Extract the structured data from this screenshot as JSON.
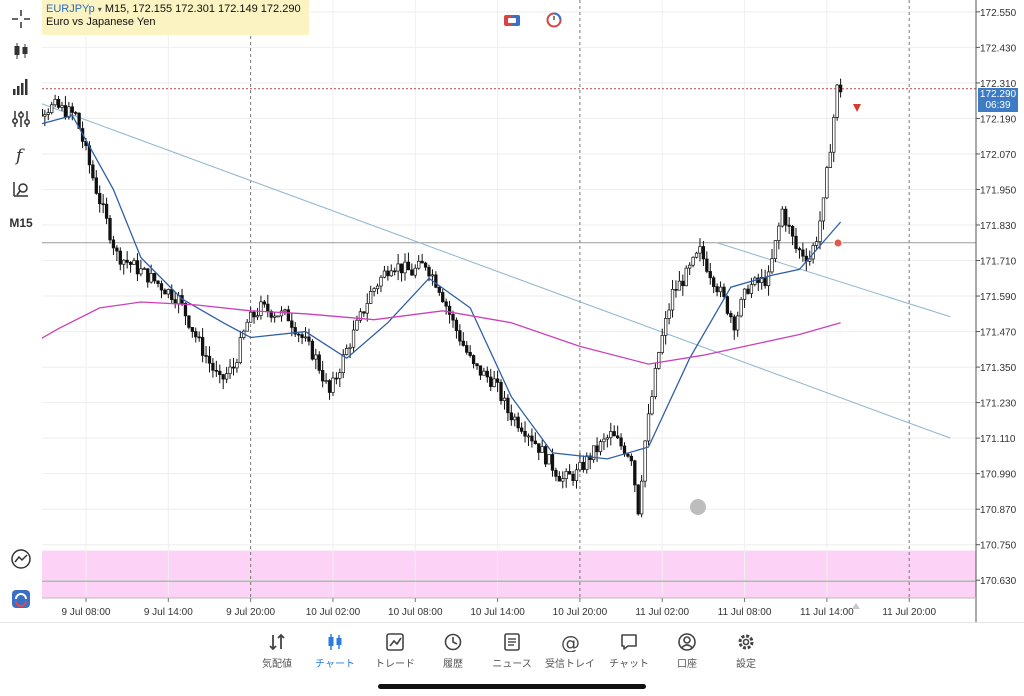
{
  "header": {
    "symbol": "EURJPYp",
    "timeframe_line": "M15, 172.155 172.301 172.149 172.290",
    "description": "Euro vs Japanese Yen"
  },
  "sidebar": {
    "timeframe": "M15",
    "items": [
      {
        "name": "crosshair-icon"
      },
      {
        "name": "candles-icon"
      },
      {
        "name": "volume-icon"
      },
      {
        "name": "indicators-icon"
      },
      {
        "name": "function-icon"
      },
      {
        "name": "objects-icon"
      }
    ],
    "bottom": [
      {
        "name": "trend-icon"
      },
      {
        "name": "app-logo-icon"
      }
    ]
  },
  "price_tag": {
    "price": "172.290",
    "countdown": "06:39"
  },
  "price_axis": {
    "labels": [
      "172.550",
      "172.430",
      "172.310",
      "172.190",
      "172.070",
      "171.950",
      "171.830",
      "171.710",
      "171.590",
      "171.470",
      "171.350",
      "171.230",
      "171.110",
      "170.990",
      "170.870",
      "170.750",
      "170.630"
    ]
  },
  "time_axis": {
    "labels": [
      "9 Jul 08:00",
      "9 Jul 14:00",
      "9 Jul 20:00",
      "10 Jul 02:00",
      "10 Jul 08:00",
      "10 Jul 14:00",
      "10 Jul 20:00",
      "11 Jul 02:00",
      "11 Jul 08:00",
      "11 Jul 14:00",
      "11 Jul 20:00"
    ]
  },
  "chart_data": {
    "type": "candlestick",
    "symbol": "EURJPYp",
    "timeframe": "M15",
    "ylim": [
      170.57,
      172.59
    ],
    "last_price": 172.29,
    "horizontal_lines": [
      171.77,
      170.627
    ],
    "pink_zone": [
      170.57,
      170.73
    ],
    "trendlines": [
      {
        "points": [
          [
            "9 Jul 03:00",
            172.27
          ],
          [
            "11 Jul 23:00",
            171.11
          ]
        ]
      },
      {
        "points": [
          [
            "11 Jul 06:00",
            171.77
          ],
          [
            "11 Jul 23:00",
            171.52
          ]
        ]
      }
    ],
    "key_path": [
      [
        "9 Jul 03:00",
        172.2
      ],
      [
        "9 Jul 06:00",
        172.23
      ],
      [
        "9 Jul 07:30",
        172.2
      ],
      [
        "9 Jul 09:00",
        171.95
      ],
      [
        "9 Jul 10:30",
        171.73
      ],
      [
        "9 Jul 13:00",
        171.65
      ],
      [
        "9 Jul 15:00",
        171.58
      ],
      [
        "9 Jul 16:30",
        171.43
      ],
      [
        "9 Jul 18:00",
        171.3
      ],
      [
        "9 Jul 19:00",
        171.35
      ],
      [
        "9 Jul 20:00",
        171.5
      ],
      [
        "9 Jul 21:00",
        171.55
      ],
      [
        "9 Jul 23:00",
        171.52
      ],
      [
        "10 Jul 00:00",
        171.45
      ],
      [
        "10 Jul 01:00",
        171.38
      ],
      [
        "10 Jul 02:00",
        171.26
      ],
      [
        "10 Jul 03:00",
        171.38
      ],
      [
        "10 Jul 05:00",
        171.6
      ],
      [
        "10 Jul 06:30",
        171.7
      ],
      [
        "10 Jul 08:00",
        171.67
      ],
      [
        "10 Jul 09:00",
        171.7
      ],
      [
        "10 Jul 10:00",
        171.62
      ],
      [
        "10 Jul 11:00",
        171.5
      ],
      [
        "10 Jul 12:30",
        171.35
      ],
      [
        "10 Jul 14:00",
        171.3
      ],
      [
        "10 Jul 15:00",
        171.2
      ],
      [
        "10 Jul 16:30",
        171.13
      ],
      [
        "10 Jul 18:00",
        171.03
      ],
      [
        "10 Jul 19:00",
        170.97
      ],
      [
        "10 Jul 20:00",
        170.99
      ],
      [
        "10 Jul 21:00",
        171.05
      ],
      [
        "10 Jul 22:30",
        171.12
      ],
      [
        "11 Jul 00:00",
        171.05
      ],
      [
        "11 Jul 00:30",
        170.87
      ],
      [
        "11 Jul 01:00",
        171.1
      ],
      [
        "11 Jul 02:00",
        171.4
      ],
      [
        "11 Jul 03:00",
        171.6
      ],
      [
        "11 Jul 04:00",
        171.66
      ],
      [
        "11 Jul 05:00",
        171.74
      ],
      [
        "11 Jul 06:30",
        171.6
      ],
      [
        "11 Jul 07:30",
        171.5
      ],
      [
        "11 Jul 08:30",
        171.62
      ],
      [
        "11 Jul 10:00",
        171.65
      ],
      [
        "11 Jul 11:00",
        171.88
      ],
      [
        "11 Jul 12:00",
        171.75
      ],
      [
        "11 Jul 13:00",
        171.72
      ],
      [
        "11 Jul 13:30",
        171.79
      ],
      [
        "11 Jul 14:00",
        171.9
      ],
      [
        "11 Jul 14:30",
        172.1
      ],
      [
        "11 Jul 15:00",
        172.29
      ]
    ],
    "moving_averages": [
      {
        "color": "#2f5fa8",
        "points": [
          [
            "9 Jul 03:00",
            172.15
          ],
          [
            "9 Jul 07:00",
            172.2
          ],
          [
            "9 Jul 10:00",
            171.95
          ],
          [
            "9 Jul 12:00",
            171.72
          ],
          [
            "9 Jul 15:00",
            171.58
          ],
          [
            "9 Jul 18:00",
            171.5
          ],
          [
            "9 Jul 20:00",
            171.45
          ],
          [
            "10 Jul 00:00",
            171.47
          ],
          [
            "10 Jul 03:00",
            171.38
          ],
          [
            "10 Jul 06:00",
            171.5
          ],
          [
            "10 Jul 09:00",
            171.65
          ],
          [
            "10 Jul 12:00",
            171.55
          ],
          [
            "10 Jul 15:00",
            171.25
          ],
          [
            "10 Jul 18:00",
            171.06
          ],
          [
            "10 Jul 22:00",
            171.04
          ],
          [
            "11 Jul 01:00",
            171.08
          ],
          [
            "11 Jul 04:00",
            171.38
          ],
          [
            "11 Jul 07:00",
            171.62
          ],
          [
            "11 Jul 10:00",
            171.66
          ],
          [
            "11 Jul 12:00",
            171.68
          ],
          [
            "11 Jul 15:00",
            171.84
          ]
        ]
      },
      {
        "color": "#cc40b8",
        "points": [
          [
            "9 Jul 03:00",
            171.4
          ],
          [
            "9 Jul 06:00",
            171.48
          ],
          [
            "9 Jul 09:00",
            171.55
          ],
          [
            "9 Jul 12:00",
            171.57
          ],
          [
            "9 Jul 16:00",
            171.56
          ],
          [
            "9 Jul 20:00",
            171.54
          ],
          [
            "10 Jul 00:00",
            171.53
          ],
          [
            "10 Jul 05:00",
            171.51
          ],
          [
            "10 Jul 10:00",
            171.54
          ],
          [
            "10 Jul 15:00",
            171.5
          ],
          [
            "10 Jul 20:00",
            171.42
          ],
          [
            "11 Jul 01:00",
            171.36
          ],
          [
            "11 Jul 05:00",
            171.39
          ],
          [
            "11 Jul 09:00",
            171.43
          ],
          [
            "11 Jul 12:00",
            171.46
          ],
          [
            "11 Jul 15:00",
            171.5
          ]
        ]
      }
    ]
  },
  "tabs": [
    {
      "label": "気配値",
      "icon": "quotes-icon"
    },
    {
      "label": "チャート",
      "icon": "chart-icon",
      "active": true
    },
    {
      "label": "トレード",
      "icon": "trade-icon"
    },
    {
      "label": "履歴",
      "icon": "history-icon"
    },
    {
      "label": "ニュース",
      "icon": "news-icon"
    },
    {
      "label": "受信トレイ",
      "icon": "mail-icon"
    },
    {
      "label": "チャット",
      "icon": "chat-icon"
    },
    {
      "label": "口座",
      "icon": "account-icon"
    },
    {
      "label": "設定",
      "icon": "settings-icon"
    }
  ],
  "colors": {
    "accent": "#2a7be0",
    "ma_fast": "#2f5fa8",
    "ma_slow": "#cc40b8",
    "zone": "#fcd2f6",
    "sell": "#d93a2f",
    "price_tag": "#3d7bc4"
  }
}
